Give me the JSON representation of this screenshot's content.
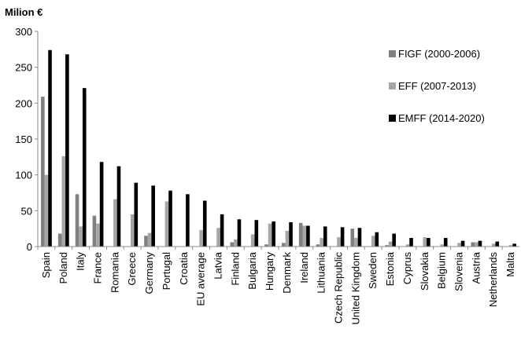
{
  "chart_data": {
    "type": "bar",
    "ylabel": "Milion €",
    "ylim": [
      0,
      300
    ],
    "yticks": [
      0,
      50,
      100,
      150,
      200,
      250,
      300
    ],
    "grid": false,
    "legend_position": "top-right",
    "categories": [
      "Spain",
      "Poland",
      "Italy",
      "France",
      "Romania",
      "Greece",
      "Germany",
      "Portugal",
      "Croatia",
      "EU average",
      "Latvia",
      "Finland",
      "Bulgaria",
      "Hungary",
      "Denmark",
      "Ireland",
      "Lithuania",
      "Czech Republic",
      "United Kingdom",
      "Sweden",
      "Estonia",
      "Cyprus",
      "Slovakia",
      "Belgium",
      "Slovenia",
      "Austria",
      "Netherlands",
      "Malta"
    ],
    "series": [
      {
        "name": "FIGF (2000-2006)",
        "color": "#808080",
        "values": [
          209,
          18,
          73,
          43,
          0,
          0,
          15,
          0,
          0,
          0,
          0,
          6,
          0,
          3,
          5,
          33,
          3,
          0,
          25,
          0,
          2,
          0,
          0,
          0,
          0,
          6,
          0,
          0
        ]
      },
      {
        "name": "EFF (2007-2013)",
        "color": "#a6a6a6",
        "values": [
          100,
          126,
          28,
          32,
          66,
          45,
          19,
          63,
          0,
          23,
          26,
          10,
          17,
          32,
          22,
          29,
          12,
          13,
          12,
          15,
          7,
          3,
          13,
          3,
          5,
          6,
          4,
          2
        ]
      },
      {
        "name": "EMFF (2014-2020)",
        "color": "#000000",
        "values": [
          274,
          268,
          221,
          118,
          112,
          89,
          85,
          78,
          73,
          64,
          45,
          38,
          37,
          35,
          34,
          29,
          28,
          27,
          26,
          20,
          18,
          12,
          12,
          12,
          8,
          8,
          7,
          4
        ]
      }
    ]
  }
}
